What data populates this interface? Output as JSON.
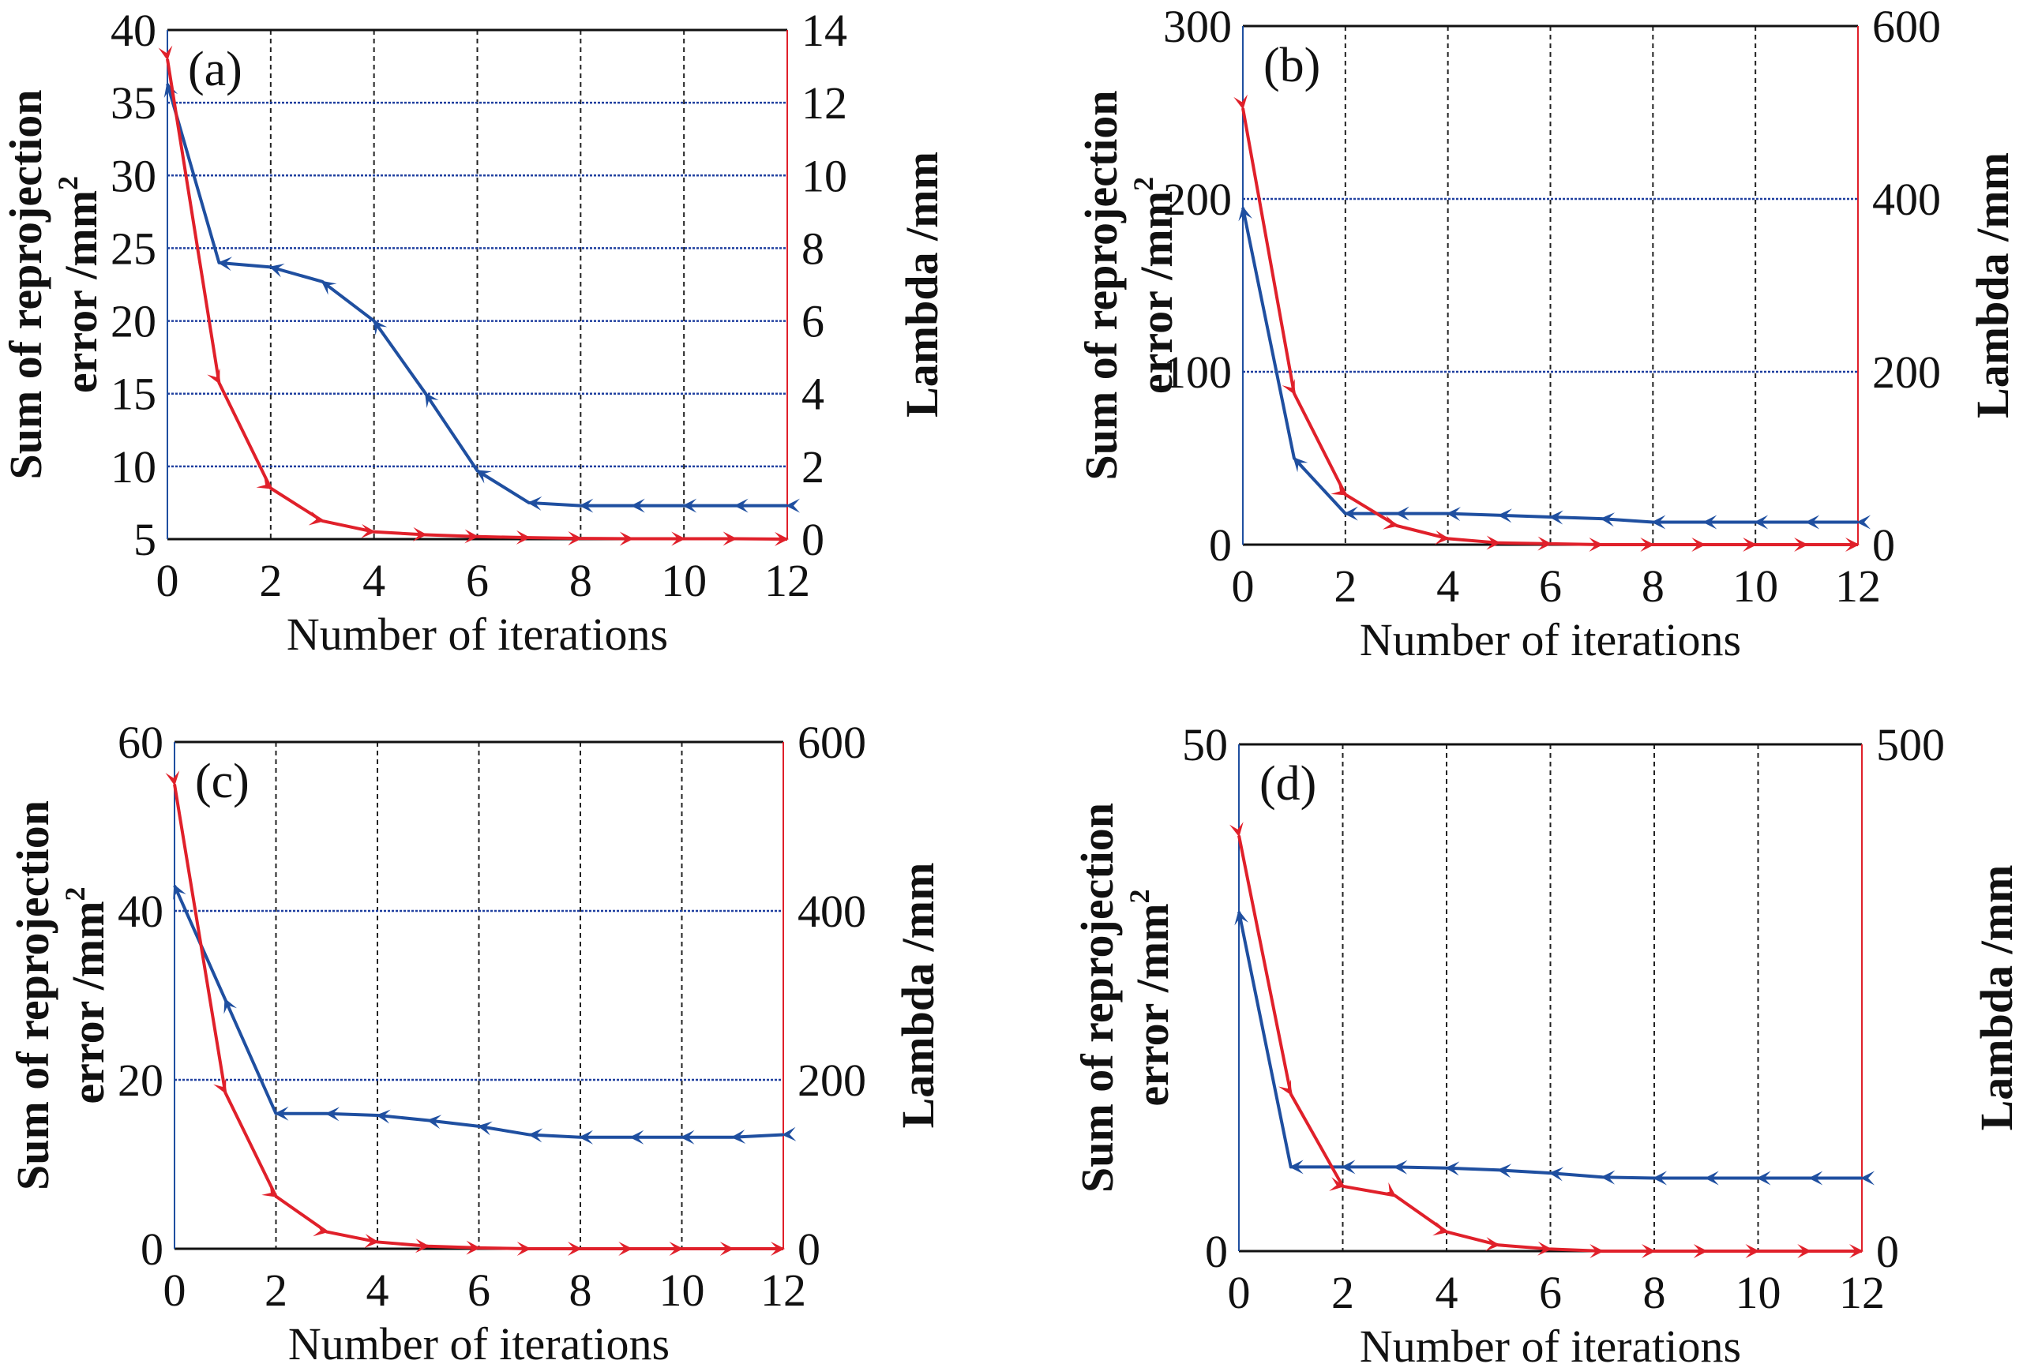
{
  "colors": {
    "error": "#1f4fa0",
    "lambda": "#e0202a",
    "grid_h": "#1f3f9f",
    "grid_v": "#222222",
    "axis": "#111111"
  },
  "chart_data": [
    {
      "type": "line",
      "panel_label": "(a)",
      "xlabel": "Number of iterations",
      "ylabel_line1": "Sum of reprojection",
      "ylabel_line2": "error /mm",
      "ylabel_sup": "2",
      "y2label": "Lambda /mm",
      "x": [
        0,
        1,
        2,
        3,
        4,
        5,
        6,
        7,
        8,
        9,
        10,
        11,
        12
      ],
      "xlim": [
        0,
        12
      ],
      "xticks": [
        0,
        2,
        4,
        6,
        8,
        10,
        12
      ],
      "ylim": [
        5,
        40
      ],
      "yticks": [
        5,
        10,
        15,
        20,
        25,
        30,
        35,
        40
      ],
      "y2lim": [
        0,
        14
      ],
      "y2ticks": [
        0,
        2,
        4,
        6,
        8,
        10,
        12,
        14
      ],
      "hgrid": true,
      "vgrid": true,
      "series": [
        {
          "name": "Sum of reprojection error",
          "axis": "left",
          "values": [
            36.3,
            24.0,
            23.7,
            22.7,
            20.0,
            15.0,
            9.7,
            7.5,
            7.3,
            7.3,
            7.3,
            7.3,
            7.3
          ]
        },
        {
          "name": "Lambda",
          "axis": "right",
          "values": [
            13.2,
            4.3,
            1.4,
            0.5,
            0.2,
            0.12,
            0.07,
            0.04,
            0.02,
            0.01,
            0.01,
            0.01,
            0.0
          ]
        }
      ]
    },
    {
      "type": "line",
      "panel_label": "(b)",
      "xlabel": "Number of iterations",
      "ylabel_line1": "Sum of reprojection",
      "ylabel_line2": "error /mm",
      "ylabel_sup": "2",
      "y2label": "Lambda /mm",
      "x": [
        0,
        1,
        2,
        3,
        4,
        5,
        6,
        7,
        8,
        9,
        10,
        11,
        12
      ],
      "xlim": [
        0,
        12
      ],
      "xticks": [
        0,
        2,
        4,
        6,
        8,
        10,
        12
      ],
      "ylim": [
        0,
        300
      ],
      "yticks": [
        0,
        100,
        200,
        300
      ],
      "y2lim": [
        0,
        600
      ],
      "y2ticks": [
        0,
        200,
        400,
        600
      ],
      "hgrid": true,
      "vgrid": true,
      "series": [
        {
          "name": "Sum of reprojection error",
          "axis": "left",
          "values": [
            195,
            50,
            18,
            18,
            18,
            17,
            16,
            15,
            13,
            13,
            13,
            13,
            13
          ]
        },
        {
          "name": "Lambda",
          "axis": "right",
          "values": [
            505,
            175,
            58,
            22,
            7,
            2,
            1,
            0,
            0,
            0,
            0,
            0,
            0
          ]
        }
      ]
    },
    {
      "type": "line",
      "panel_label": "(c)",
      "xlabel": "Number of iterations",
      "ylabel_line1": "Sum of reprojection",
      "ylabel_line2": "error /mm",
      "ylabel_sup": "2",
      "y2label": "Lambda /mm",
      "x": [
        0,
        1,
        2,
        3,
        4,
        5,
        6,
        7,
        8,
        9,
        10,
        11,
        12
      ],
      "xlim": [
        0,
        12
      ],
      "xticks": [
        0,
        2,
        4,
        6,
        8,
        10,
        12
      ],
      "ylim": [
        0,
        60
      ],
      "yticks": [
        0,
        20,
        40,
        60
      ],
      "y2lim": [
        0,
        600
      ],
      "y2ticks": [
        0,
        200,
        400,
        600
      ],
      "hgrid": true,
      "vgrid": true,
      "series": [
        {
          "name": "Sum of reprojection error",
          "axis": "left",
          "values": [
            43,
            29.5,
            16,
            16,
            15.8,
            15.2,
            14.5,
            13.5,
            13.2,
            13.2,
            13.2,
            13.2,
            13.5
          ]
        },
        {
          "name": "Lambda",
          "axis": "right",
          "values": [
            550,
            185,
            62,
            20,
            8,
            3,
            1,
            0,
            0,
            0,
            0,
            0,
            0
          ]
        }
      ]
    },
    {
      "type": "line",
      "panel_label": "(d)",
      "xlabel": "Number of iterations",
      "ylabel_line1": "Sum of reprojection",
      "ylabel_line2": "error /mm",
      "ylabel_sup": "2",
      "y2label": "Lambda /mm",
      "x": [
        0,
        1,
        2,
        3,
        4,
        5,
        6,
        7,
        8,
        9,
        10,
        11,
        12
      ],
      "xlim": [
        0,
        12
      ],
      "xticks": [
        0,
        2,
        4,
        6,
        8,
        10,
        12
      ],
      "ylim": [
        0,
        50
      ],
      "yticks": [
        0,
        50
      ],
      "y2lim": [
        0,
        500
      ],
      "y2ticks": [
        0,
        500
      ],
      "hgrid": false,
      "vgrid": true,
      "series": [
        {
          "name": "Sum of reprojection error",
          "axis": "left",
          "values": [
            33.5,
            8.3,
            8.3,
            8.3,
            8.2,
            8.0,
            7.7,
            7.3,
            7.2,
            7.2,
            7.2,
            7.2,
            7.2
          ]
        },
        {
          "name": "Lambda",
          "axis": "right",
          "values": [
            410,
            155,
            64,
            55,
            19,
            6,
            2,
            0,
            0,
            0,
            0,
            0,
            0
          ]
        }
      ]
    }
  ]
}
